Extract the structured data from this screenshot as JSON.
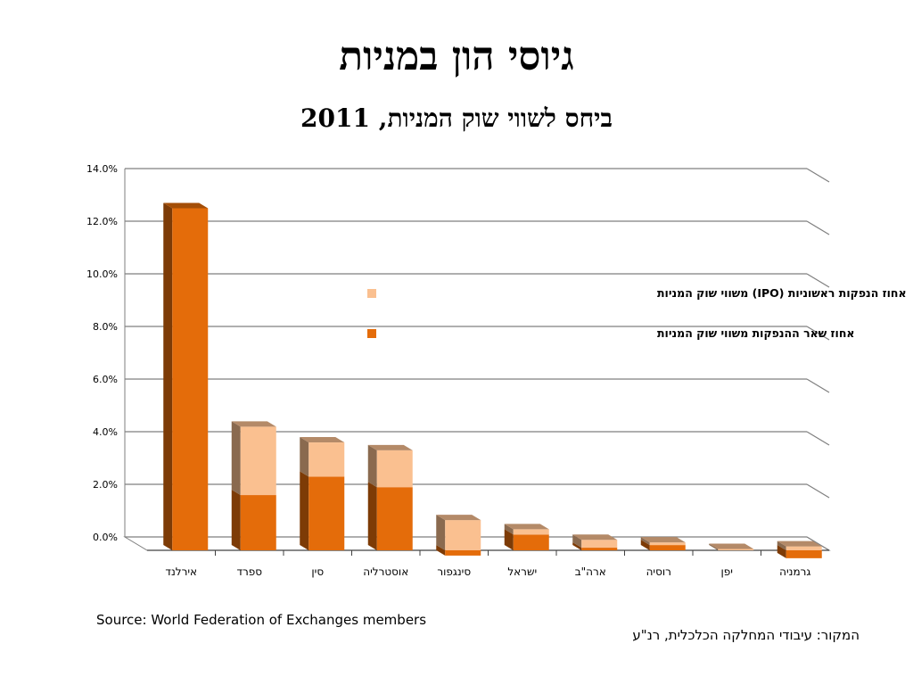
{
  "title": "גיוסי הון במניות",
  "subtitle": "ביחס לשווי שוק המניות, 2011",
  "source_en": "Source: World Federation of Exchanges members",
  "source_he": "המקור: עיבודי המחלקה הכלכלית, רנ\"ע",
  "colors": {
    "ipo": "#FAC090",
    "other": "#E46C0A",
    "grid": "#7F7F7F"
  },
  "chart_data": {
    "type": "bar",
    "stacked": true,
    "three_d": true,
    "categories": [
      "אירלנד",
      "ספרד",
      "סין",
      "אוסטרליה",
      "סינגפור",
      "ישראל",
      "ארה\"ב",
      "רוסיה",
      "יפן",
      "גרמניה"
    ],
    "series": [
      {
        "name": "אחוז שאר ההנפקות משווי שוק המניות",
        "values": [
          13.0,
          2.1,
          2.8,
          2.4,
          -0.2,
          0.6,
          0.1,
          0.2,
          0.0,
          -0.3
        ]
      },
      {
        "name": "אחוז הנפקות ראשוניות (IPO) משווי שוק המניות",
        "values": [
          0.0,
          2.6,
          1.3,
          1.4,
          1.15,
          0.2,
          0.3,
          0.1,
          0.05,
          0.15
        ]
      }
    ],
    "y_ticks": [
      "0.0%",
      "2.0%",
      "4.0%",
      "6.0%",
      "8.0%",
      "10.0%",
      "12.0%",
      "14.0%"
    ],
    "ylim": [
      0,
      14
    ],
    "grid": true,
    "legend_position": "center"
  }
}
